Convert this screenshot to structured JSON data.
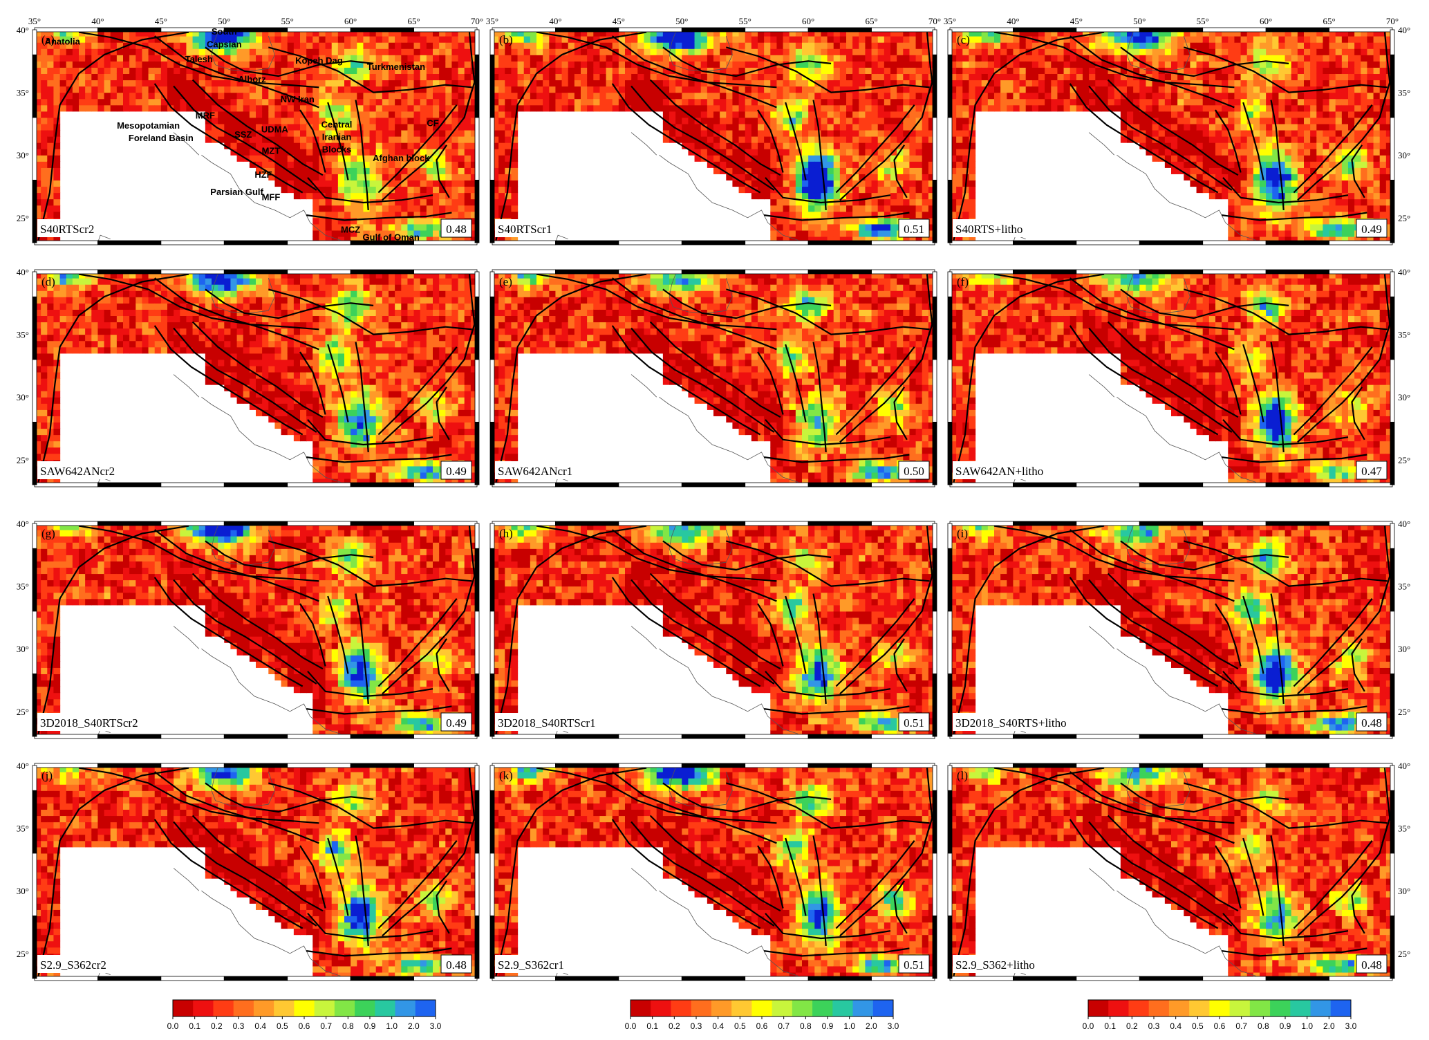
{
  "colormap": [
    "#c80000",
    "#ee1010",
    "#ff3c14",
    "#ff6e1e",
    "#ff9a28",
    "#ffc832",
    "#ffff00",
    "#c8f53c",
    "#82e646",
    "#3cd25a",
    "#28c8a0",
    "#3296e6",
    "#1e64f0",
    "#0a1ed2"
  ],
  "lon_ticks": [
    "35°",
    "40°",
    "45°",
    "50°",
    "55°",
    "60°",
    "65°",
    "70°"
  ],
  "lat_ticks": [
    "40°",
    "35°",
    "30°",
    "25°"
  ],
  "colorbar": {
    "ticks": [
      "0.0",
      "0.1",
      "0.2",
      "0.3",
      "0.4",
      "0.5",
      "0.6",
      "0.7",
      "0.8",
      "0.9",
      "1.0",
      "2.0",
      "3.0"
    ]
  },
  "map_extent": {
    "lon": [
      35,
      70
    ],
    "lat": [
      23,
      40
    ]
  },
  "panels": [
    {
      "letter": "(a)",
      "model": "S40RTScr2",
      "score": "0.48"
    },
    {
      "letter": "(b)",
      "model": "S40RTScr1",
      "score": "0.51"
    },
    {
      "letter": "(c)",
      "model": "S40RTS+litho",
      "score": "0.49"
    },
    {
      "letter": "(d)",
      "model": "SAW642ANcr2",
      "score": "0.49"
    },
    {
      "letter": "(e)",
      "model": "SAW642ANcr1",
      "score": "0.50"
    },
    {
      "letter": "(f)",
      "model": "SAW642AN+litho",
      "score": "0.47"
    },
    {
      "letter": "(g)",
      "model": "3D2018_S40RTScr2",
      "score": "0.49"
    },
    {
      "letter": "(h)",
      "model": "3D2018_S40RTScr1",
      "score": "0.51"
    },
    {
      "letter": "(i)",
      "model": "3D2018_S40RTS+litho",
      "score": "0.48"
    },
    {
      "letter": "(j)",
      "model": "S2.9_S362cr2",
      "score": "0.48"
    },
    {
      "letter": "(k)",
      "model": "S2.9_S362cr1",
      "score": "0.51"
    },
    {
      "letter": "(l)",
      "model": "S2.9_S362+litho",
      "score": "0.48"
    }
  ],
  "geo_labels": [
    {
      "text": "Anatolia",
      "lon": 37.2,
      "lat": 38.8
    },
    {
      "text": "South",
      "lon": 50.0,
      "lat": 39.6
    },
    {
      "text": "Capsian",
      "lon": 50.0,
      "lat": 38.6
    },
    {
      "text": "Talesh",
      "lon": 48.0,
      "lat": 37.4
    },
    {
      "text": "Kopeh Dag",
      "lon": 57.5,
      "lat": 37.3
    },
    {
      "text": "Turkmenistan",
      "lon": 63.6,
      "lat": 36.8
    },
    {
      "text": "Alborz",
      "lon": 52.2,
      "lat": 35.8
    },
    {
      "text": "NW Iran",
      "lon": 55.8,
      "lat": 34.2
    },
    {
      "text": "Mesopotamian",
      "lon": 44.0,
      "lat": 32.1
    },
    {
      "text": "Foreland Basin",
      "lon": 45.0,
      "lat": 31.1
    },
    {
      "text": "MRF",
      "lon": 48.5,
      "lat": 32.9
    },
    {
      "text": "SSZ",
      "lon": 51.5,
      "lat": 31.4
    },
    {
      "text": "UDMA",
      "lon": 54.0,
      "lat": 31.8
    },
    {
      "text": "MZT",
      "lon": 53.7,
      "lat": 30.1
    },
    {
      "text": "Central",
      "lon": 58.9,
      "lat": 32.2
    },
    {
      "text": "Iranian",
      "lon": 58.9,
      "lat": 31.2
    },
    {
      "text": "Blocks",
      "lon": 58.9,
      "lat": 30.2
    },
    {
      "text": "CF",
      "lon": 66.5,
      "lat": 32.3
    },
    {
      "text": "Afghan block",
      "lon": 64.0,
      "lat": 29.5
    },
    {
      "text": "HZF",
      "lon": 53.1,
      "lat": 28.2
    },
    {
      "text": "Parsian Gulf",
      "lon": 51.0,
      "lat": 26.8
    },
    {
      "text": "MFF",
      "lon": 53.7,
      "lat": 26.4
    },
    {
      "text": "MCZ",
      "lon": 60.0,
      "lat": 23.8
    },
    {
      "text": "Gulf of Oman",
      "lon": 63.2,
      "lat": 23.2
    }
  ]
}
